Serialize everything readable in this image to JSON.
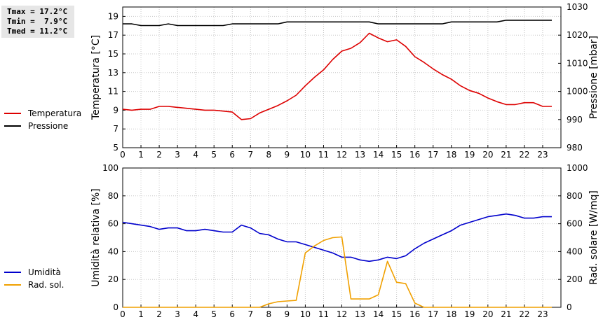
{
  "stats": {
    "tmax": "Tmax = 17.2°C",
    "tmin": "Tmin =  7.9°C",
    "tmed": "Tmed = 11.2°C"
  },
  "legend_top": [
    {
      "label": "Temperatura",
      "color": "#dd0000"
    },
    {
      "label": "Pressione",
      "color": "#000000"
    }
  ],
  "legend_bottom": [
    {
      "label": "Umidità",
      "color": "#0000cc"
    },
    {
      "label": "Rad. sol.",
      "color": "#f0a000"
    }
  ],
  "chart_data": [
    {
      "type": "line",
      "xlabel": "",
      "x_ticks": [
        0,
        1,
        2,
        3,
        4,
        5,
        6,
        7,
        8,
        9,
        10,
        11,
        12,
        13,
        14,
        15,
        16,
        17,
        18,
        19,
        20,
        21,
        22,
        23
      ],
      "xlim": [
        0,
        24
      ],
      "ylabel_left": "Temperatura [°C]",
      "ylim_left": [
        5,
        20
      ],
      "yticks_left": [
        5,
        7,
        9,
        11,
        13,
        15,
        17,
        19
      ],
      "ylabel_right": "Pressione [mbar]",
      "ylim_right": [
        980,
        1030
      ],
      "yticks_right": [
        980,
        990,
        1000,
        1010,
        1020,
        1030
      ],
      "grid": true,
      "series": [
        {
          "name": "Temperatura",
          "axis": "left",
          "color": "#dd0000",
          "x": [
            0,
            0.5,
            1,
            1.5,
            2,
            2.5,
            3,
            3.5,
            4,
            4.5,
            5,
            5.5,
            6,
            6.5,
            7,
            7.5,
            8,
            8.5,
            9,
            9.5,
            10,
            10.5,
            11,
            11.5,
            12,
            12.5,
            13,
            13.5,
            14,
            14.5,
            15,
            15.5,
            16,
            16.5,
            17,
            17.5,
            18,
            18.5,
            19,
            19.5,
            20,
            20.5,
            21,
            21.5,
            22,
            22.5,
            23,
            23.5
          ],
          "values": [
            9.1,
            9.0,
            9.1,
            9.1,
            9.4,
            9.4,
            9.3,
            9.2,
            9.1,
            9.0,
            9.0,
            8.9,
            8.8,
            8.0,
            8.1,
            8.7,
            9.1,
            9.5,
            10.0,
            10.6,
            11.6,
            12.5,
            13.3,
            14.4,
            15.3,
            15.6,
            16.2,
            17.2,
            16.7,
            16.3,
            16.5,
            15.8,
            14.7,
            14.1,
            13.4,
            12.8,
            12.3,
            11.6,
            11.1,
            10.8,
            10.3,
            9.9,
            9.6,
            9.6,
            9.8,
            9.8,
            9.4,
            9.4
          ]
        },
        {
          "name": "Pressione",
          "axis": "right",
          "color": "#000000",
          "x": [
            0,
            0.5,
            1,
            2,
            2.5,
            3,
            4,
            5,
            5.5,
            6,
            7,
            8,
            8.5,
            9,
            10,
            11,
            12,
            13,
            13.5,
            14,
            15,
            16,
            17,
            17.5,
            18,
            19,
            20,
            20.5,
            21,
            22,
            23,
            23.5
          ],
          "values": [
            1024,
            1024,
            1023.4,
            1023.4,
            1024,
            1023.4,
            1023.4,
            1023.4,
            1023.4,
            1024,
            1024,
            1024,
            1024,
            1024.7,
            1024.7,
            1024.7,
            1024.7,
            1024.7,
            1024.7,
            1024,
            1024,
            1024,
            1024,
            1024,
            1024.7,
            1024.7,
            1024.7,
            1024.7,
            1025.3,
            1025.3,
            1025.3,
            1025.3
          ]
        }
      ]
    },
    {
      "type": "line",
      "xlabel": "",
      "x_ticks": [
        0,
        1,
        2,
        3,
        4,
        5,
        6,
        7,
        8,
        9,
        10,
        11,
        12,
        13,
        14,
        15,
        16,
        17,
        18,
        19,
        20,
        21,
        22,
        23
      ],
      "xlim": [
        0,
        24
      ],
      "ylabel_left": "Umidità relativa [%]",
      "ylim_left": [
        0,
        100
      ],
      "yticks_left": [
        0,
        20,
        40,
        60,
        80,
        100
      ],
      "ylabel_right": "Rad. solare [W/mq]",
      "ylim_right": [
        0,
        1000
      ],
      "yticks_right": [
        0,
        200,
        400,
        600,
        800,
        1000
      ],
      "grid": true,
      "series": [
        {
          "name": "Umidità",
          "axis": "left",
          "color": "#0000cc",
          "x": [
            0,
            0.5,
            1,
            1.5,
            2,
            2.5,
            3,
            3.5,
            4,
            4.5,
            5,
            5.5,
            6,
            6.5,
            7,
            7.5,
            8,
            8.5,
            9,
            9.5,
            10,
            10.5,
            11,
            11.5,
            12,
            12.5,
            13,
            13.5,
            14,
            14.5,
            15,
            15.5,
            16,
            16.5,
            17,
            17.5,
            18,
            18.5,
            19,
            19.5,
            20,
            20.5,
            21,
            21.5,
            22,
            22.5,
            23,
            23.5
          ],
          "values": [
            61,
            60,
            59,
            58,
            56,
            57,
            57,
            55,
            55,
            56,
            55,
            54,
            54,
            59,
            57,
            53,
            52,
            49,
            47,
            47,
            45,
            43,
            41,
            39,
            36,
            36,
            34,
            33,
            34,
            36,
            35,
            37,
            42,
            46,
            49,
            52,
            55,
            59,
            61,
            63,
            65,
            66,
            67,
            66,
            64,
            64,
            65,
            65
          ]
        },
        {
          "name": "Rad. sol.",
          "axis": "right",
          "color": "#f0a000",
          "x": [
            0,
            1,
            2,
            3,
            4,
            5,
            6,
            7,
            7.5,
            8,
            8.5,
            9,
            9.5,
            10,
            10.5,
            11,
            11.5,
            12,
            12.5,
            13,
            13.5,
            14,
            14.5,
            15,
            15.5,
            16,
            16.5,
            17,
            18,
            19,
            20,
            21,
            22,
            23,
            23.5
          ],
          "values": [
            0,
            0,
            0,
            0,
            0,
            0,
            0,
            0,
            0,
            25,
            40,
            45,
            50,
            390,
            440,
            480,
            500,
            505,
            60,
            60,
            60,
            90,
            330,
            180,
            170,
            30,
            0,
            0,
            0,
            0,
            0,
            0,
            0,
            0,
            0
          ]
        }
      ]
    }
  ]
}
